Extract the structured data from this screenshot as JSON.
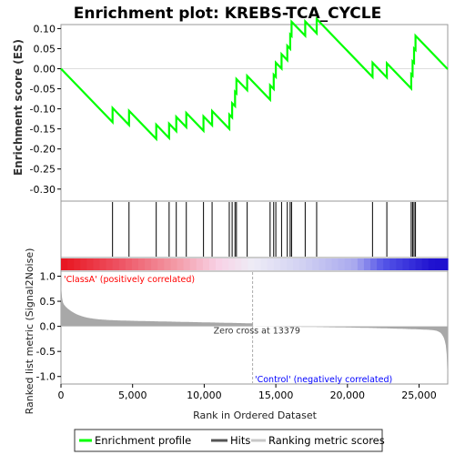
{
  "chart_data": {
    "title": "Enrichment plot: KREBS-TCA_CYCLE",
    "type": "line",
    "n_genes": 27000,
    "x_ticks": [
      0,
      5000,
      10000,
      15000,
      20000,
      25000
    ],
    "x_tick_labels": [
      "0",
      "5,000",
      "10,000",
      "15,000",
      "20,000",
      "25,000"
    ],
    "xlabel": "Rank in Ordered Dataset",
    "es_panel": {
      "ylabel": "Enrichment score (ES)",
      "ylim": [
        -0.33,
        0.11
      ],
      "y_ticks": [
        0.1,
        0.05,
        0.0,
        -0.05,
        -0.1,
        -0.15,
        -0.2,
        -0.25,
        -0.3
      ],
      "y_tick_labels": [
        "0.10",
        "0.05",
        "0.00",
        "-0.05",
        "-0.10",
        "-0.15",
        "-0.20",
        "-0.25",
        "-0.30"
      ],
      "line_color": "#00ff00"
    },
    "hits": [
      3600,
      4750,
      6650,
      7550,
      8050,
      8750,
      9950,
      10550,
      11750,
      11950,
      12150,
      12250,
      13000,
      14600,
      14850,
      15000,
      15400,
      15800,
      16000,
      16100,
      17050,
      17850,
      21750,
      22750,
      24450,
      24550,
      24650,
      24750
    ],
    "heatmap": {
      "stops": [
        {
          "rank": 0,
          "color": "#e8141e"
        },
        {
          "rank": 4200,
          "color": "#ee5565"
        },
        {
          "rank": 8000,
          "color": "#f39aa6"
        },
        {
          "rank": 11000,
          "color": "#f8d2e6"
        },
        {
          "rank": 13379,
          "color": "#eeecf6"
        },
        {
          "rank": 17000,
          "color": "#d0d0f2"
        },
        {
          "rank": 20500,
          "color": "#a9a9ee"
        },
        {
          "rank": 22500,
          "color": "#5555e8"
        },
        {
          "rank": 26000,
          "color": "#1e10cf"
        },
        {
          "rank": 27000,
          "color": "#1e10cf"
        }
      ]
    },
    "metric_panel": {
      "ylabel": "Ranked list metric (Signal2Noise)",
      "ylim": [
        -1.15,
        1.1
      ],
      "y_ticks": [
        1.0,
        0.5,
        0.0,
        -0.5,
        -1.0
      ],
      "y_tick_labels": [
        "1.0",
        "0.5",
        "0.0",
        "-0.5",
        "-1.0"
      ],
      "zero_cross_rank": 13379,
      "zero_cross_label": "Zero cross at 13379",
      "pos_label": "'ClassA' (positively correlated)",
      "neg_label": "'Control' (negatively correlated)",
      "pos_color": "#ff0000",
      "neg_color": "#0000ff",
      "fill_color": "#a8a8a8"
    },
    "legend": {
      "placement": "bottom",
      "items": [
        {
          "label": "Enrichment profile",
          "color": "#00ff00"
        },
        {
          "label": "Hits",
          "color": "#555555"
        },
        {
          "label": "Ranking metric scores",
          "color": "#c8c8c8"
        }
      ]
    }
  }
}
